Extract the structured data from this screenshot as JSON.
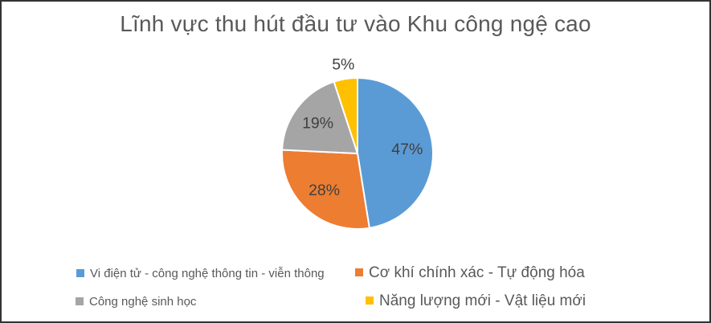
{
  "chart_data": {
    "type": "pie",
    "title": "Lĩnh vực thu hút đầu tư vào Khu công ngệ cao",
    "categories": [
      "Vi điện tử - công nghệ thông tin - viễn thông",
      "Cơ khí chính xác - Tự động hóa",
      "Công nghệ sinh học",
      "Năng lượng mới - Vật liệu mới"
    ],
    "values": [
      47,
      28,
      19,
      5
    ],
    "labels": [
      "47%",
      "28%",
      "19%",
      "5%"
    ],
    "colors": [
      "#5B9BD5",
      "#ED7D31",
      "#A5A5A5",
      "#FFC000"
    ],
    "start_angle_deg": 0,
    "direction": "clockwise",
    "legend_position": "bottom",
    "title_color": "#595959",
    "label_color": "#404040",
    "slice_border_color": "#FFFFFF"
  }
}
